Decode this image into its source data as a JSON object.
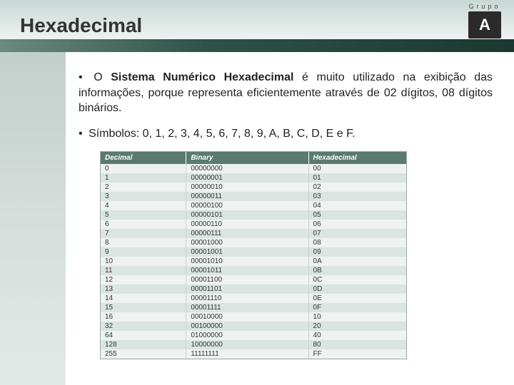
{
  "logo": {
    "group_text": "Grupo",
    "letter": "A"
  },
  "title": "Hexadecimal",
  "para1": {
    "bullet": "•",
    "pre": "O ",
    "bold": "Sistema Numérico Hexadecimal",
    "post": " é muito utilizado na exibição das informações, porque representa eficientemente através de 02 dígitos, 08 dígitos binários."
  },
  "para2": {
    "bullet": "•",
    "text": "Símbolos: 0, 1, 2, 3, 4, 5, 6, 7, 8, 9, A, B, C, D, E e F."
  },
  "table": {
    "type": "table",
    "columns": [
      "Decimal",
      "Binary",
      "Hexadecimal"
    ],
    "header_bg": "#5a7a70",
    "header_fg": "#ffffff",
    "row_even_bg": "#dae4e0",
    "row_odd_bg": "#eef2f0",
    "border_color": "#9aaaa4",
    "font_size": 10,
    "rows": [
      [
        "0",
        "00000000",
        "00"
      ],
      [
        "1",
        "00000001",
        "01"
      ],
      [
        "2",
        "00000010",
        "02"
      ],
      [
        "3",
        "00000011",
        "03"
      ],
      [
        "4",
        "00000100",
        "04"
      ],
      [
        "5",
        "00000101",
        "05"
      ],
      [
        "6",
        "00000110",
        "06"
      ],
      [
        "7",
        "00000111",
        "07"
      ],
      [
        "8",
        "00001000",
        "08"
      ],
      [
        "9",
        "00001001",
        "09"
      ],
      [
        "10",
        "00001010",
        "0A"
      ],
      [
        "11",
        "00001011",
        "0B"
      ],
      [
        "12",
        "00001100",
        "0C"
      ],
      [
        "13",
        "00001101",
        "0D"
      ],
      [
        "14",
        "00001110",
        "0E"
      ],
      [
        "15",
        "00001111",
        "0F"
      ],
      [
        "16",
        "00010000",
        "10"
      ],
      [
        "32",
        "00100000",
        "20"
      ],
      [
        "64",
        "01000000",
        "40"
      ],
      [
        "128",
        "10000000",
        "80"
      ],
      [
        "255",
        "11111111",
        "FF"
      ]
    ]
  },
  "colors": {
    "band_gradient_start": "#6b8a7e",
    "band_gradient_end": "#1a3830",
    "background_top": "#c8d8d4"
  }
}
